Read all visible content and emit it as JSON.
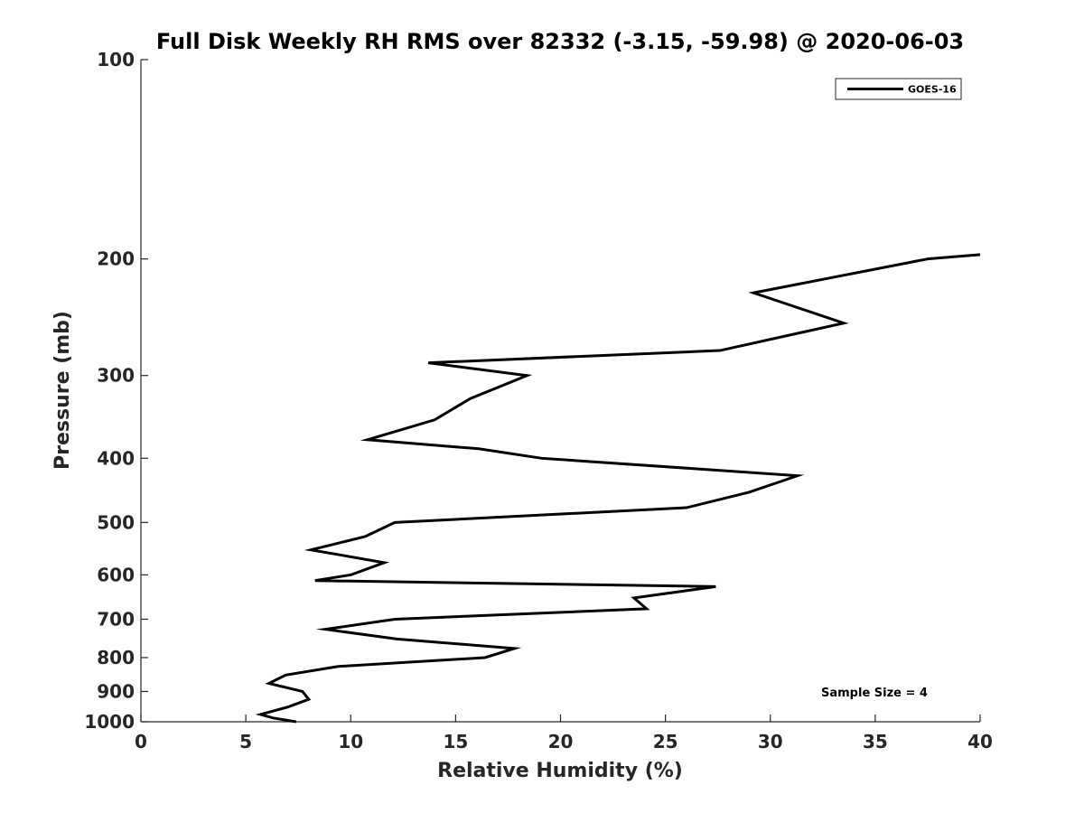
{
  "chart_data": {
    "type": "line",
    "title": "Full Disk Weekly RH RMS over 82332 (-3.15, -59.98) @ 2020-06-03",
    "xlabel": "Relative Humidity (%)",
    "ylabel": "Pressure (mb)",
    "xlim": [
      0,
      40
    ],
    "ylim": [
      100,
      1000
    ],
    "y_scale": "log",
    "y_inverted": true,
    "x_ticks": [
      0,
      5,
      10,
      15,
      20,
      25,
      30,
      35,
      40
    ],
    "y_ticks": [
      100,
      200,
      300,
      400,
      500,
      600,
      700,
      800,
      900,
      1000
    ],
    "grid": false,
    "legend_position": "top-right",
    "annotation": "Sample Size = 4",
    "series": [
      {
        "name": "GOES-16",
        "color": "#000000",
        "points": [
          {
            "x": 40.0,
            "y": 197
          },
          {
            "x": 37.5,
            "y": 200
          },
          {
            "x": 29.2,
            "y": 225
          },
          {
            "x": 33.5,
            "y": 250
          },
          {
            "x": 27.6,
            "y": 275
          },
          {
            "x": 13.7,
            "y": 287
          },
          {
            "x": 18.4,
            "y": 300
          },
          {
            "x": 15.7,
            "y": 325
          },
          {
            "x": 14.0,
            "y": 350
          },
          {
            "x": 10.8,
            "y": 375
          },
          {
            "x": 16.1,
            "y": 387
          },
          {
            "x": 19.1,
            "y": 400
          },
          {
            "x": 31.3,
            "y": 425
          },
          {
            "x": 29.0,
            "y": 450
          },
          {
            "x": 26.0,
            "y": 475
          },
          {
            "x": 12.1,
            "y": 500
          },
          {
            "x": 10.7,
            "y": 525
          },
          {
            "x": 8.1,
            "y": 550
          },
          {
            "x": 11.6,
            "y": 575
          },
          {
            "x": 10.0,
            "y": 600
          },
          {
            "x": 8.3,
            "y": 612
          },
          {
            "x": 27.4,
            "y": 625
          },
          {
            "x": 23.5,
            "y": 650
          },
          {
            "x": 24.1,
            "y": 675
          },
          {
            "x": 12.1,
            "y": 700
          },
          {
            "x": 8.8,
            "y": 725
          },
          {
            "x": 12.2,
            "y": 750
          },
          {
            "x": 17.8,
            "y": 775
          },
          {
            "x": 16.4,
            "y": 800
          },
          {
            "x": 9.4,
            "y": 825
          },
          {
            "x": 6.9,
            "y": 850
          },
          {
            "x": 6.1,
            "y": 875
          },
          {
            "x": 7.7,
            "y": 900
          },
          {
            "x": 8.0,
            "y": 925
          },
          {
            "x": 7.0,
            "y": 950
          },
          {
            "x": 5.7,
            "y": 975
          },
          {
            "x": 6.3,
            "y": 987
          },
          {
            "x": 7.4,
            "y": 1000
          }
        ]
      }
    ]
  }
}
